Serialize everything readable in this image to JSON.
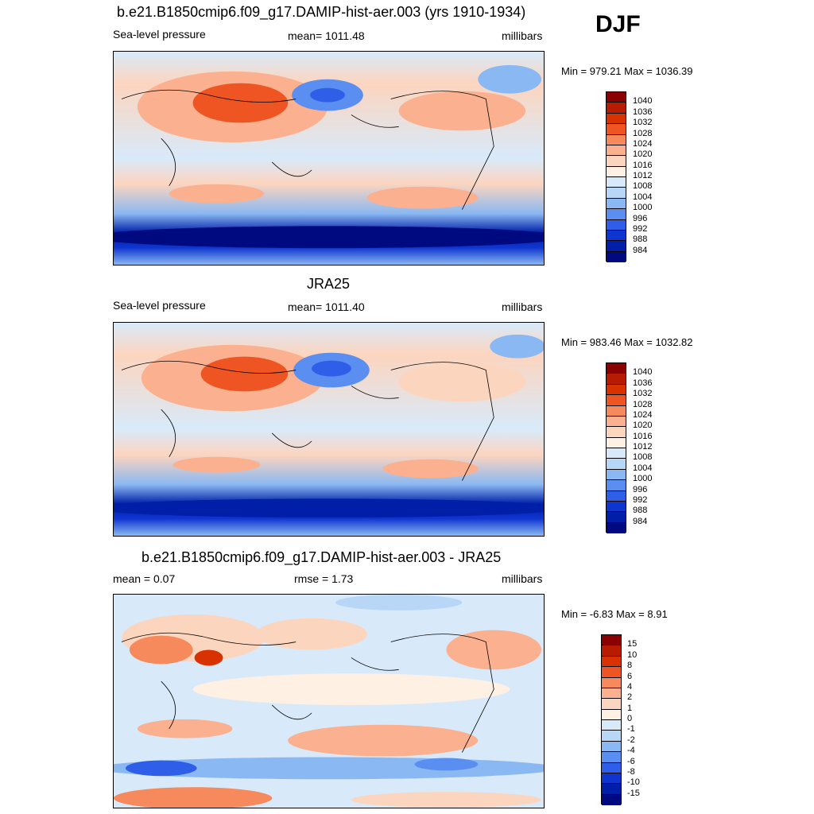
{
  "season": "DJF",
  "panels": [
    {
      "title": "b.e21.B1850cmip6.f09_g17.DAMIP-hist-aer.003 (yrs 1910-1934)",
      "left_label": "Sea-level pressure",
      "center_label": "mean= 1011.48",
      "right_label": "millibars",
      "minmax": "Min = 979.21 Max = 1036.39"
    },
    {
      "title": "JRA25",
      "left_label": "Sea-level pressure",
      "center_label": "mean= 1011.40",
      "right_label": "millibars",
      "minmax": "Min = 983.46 Max = 1032.82"
    },
    {
      "title": "b.e21.B1850cmip6.f09_g17.DAMIP-hist-aer.003 - JRA25",
      "left_label": "mean =   0.07",
      "center_label": "rmse =   1.73",
      "right_label": "millibars",
      "minmax": "Min =  -6.83 Max =   8.91"
    }
  ],
  "colorbar_slp": {
    "labels": [
      "1040",
      "1036",
      "1032",
      "1028",
      "1024",
      "1020",
      "1016",
      "1012",
      "1008",
      "1004",
      "1000",
      "996",
      "992",
      "988",
      "984"
    ],
    "colors": [
      "#8b0000",
      "#b81c00",
      "#d83200",
      "#ee5522",
      "#f78a5c",
      "#fbb08f",
      "#fcd5bf",
      "#fff0e4",
      "#d8eafa",
      "#b8d6f6",
      "#8ab8f2",
      "#5a8ef0",
      "#2f5fe8",
      "#0f35d0",
      "#001fa8",
      "#000a80"
    ]
  },
  "colorbar_diff": {
    "labels": [
      "15",
      "10",
      "8",
      "6",
      "4",
      "2",
      "1",
      "0",
      "-1",
      "-2",
      "-4",
      "-6",
      "-8",
      "-10",
      "-15"
    ],
    "colors": [
      "#8b0000",
      "#b81c00",
      "#d83200",
      "#ee5522",
      "#f78a5c",
      "#fbb08f",
      "#fcd5bf",
      "#fff0e4",
      "#d8eafa",
      "#b8d6f6",
      "#8ab8f2",
      "#5a8ef0",
      "#2f5fe8",
      "#0f35d0",
      "#001fa8",
      "#000a80"
    ]
  }
}
